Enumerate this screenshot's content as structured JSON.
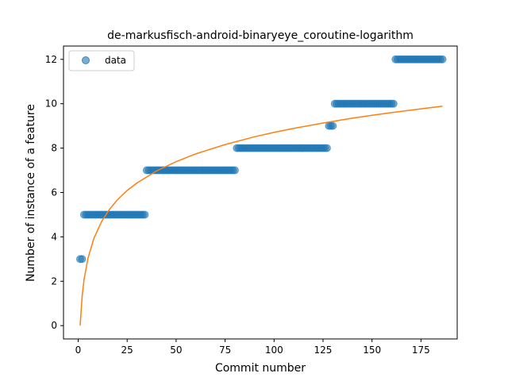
{
  "chart_data": {
    "type": "scatter",
    "title": "de-markusfisch-android-binaryeye_coroutine-logarithm",
    "xlabel": "Commit number",
    "ylabel": "Number of instance of a feature",
    "xlim": [
      -7.5,
      193.5
    ],
    "ylim": [
      -0.6,
      12.6
    ],
    "xticks": [
      0,
      25,
      50,
      75,
      100,
      125,
      150,
      175
    ],
    "yticks": [
      0,
      2,
      4,
      6,
      8,
      10,
      12
    ],
    "grid": false,
    "legend": {
      "placement": "top-left",
      "entries": [
        "data"
      ]
    },
    "series": [
      {
        "name": "data",
        "kind": "scatter",
        "color": "#1f77b4",
        "segments": [
          {
            "x_start": 1,
            "x_end": 2,
            "y": 3
          },
          {
            "x_start": 3,
            "x_end": 34,
            "y": 5
          },
          {
            "x_start": 35,
            "x_end": 80,
            "y": 7
          },
          {
            "x_start": 81,
            "x_end": 127,
            "y": 8
          },
          {
            "x_start": 128,
            "x_end": 130,
            "y": 9
          },
          {
            "x_start": 131,
            "x_end": 161,
            "y": 10
          },
          {
            "x_start": 162,
            "x_end": 186,
            "y": 12
          }
        ]
      },
      {
        "name": "",
        "kind": "line",
        "color": "#ff7f0e",
        "fit_curve": {
          "x": [
            1,
            2,
            3,
            5,
            8,
            12,
            16,
            20,
            25,
            30,
            40,
            50,
            60,
            75,
            90,
            100,
            110,
            125,
            140,
            150,
            160,
            175,
            186
          ],
          "y": [
            0.0,
            1.31,
            2.08,
            3.04,
            3.93,
            4.7,
            5.24,
            5.67,
            6.09,
            6.43,
            6.97,
            7.39,
            7.74,
            8.16,
            8.51,
            8.71,
            8.89,
            9.13,
            9.35,
            9.48,
            9.6,
            9.77,
            9.89
          ]
        }
      }
    ]
  }
}
